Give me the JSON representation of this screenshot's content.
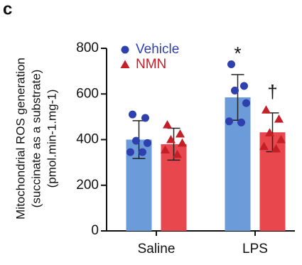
{
  "chart_data": {
    "type": "bar",
    "panel_label": "c",
    "ylabel": [
      "Mitochondrial ROS generation",
      "(succinate as a substrate)",
      "(pmol.min-1.mg-1)"
    ],
    "categories": [
      "Saline",
      "LPS"
    ],
    "series": [
      {
        "name": "Vehicle",
        "color": "#6b9bd9",
        "point_color": "#2e3fae",
        "marker": "circle",
        "values": [
          400,
          585
        ],
        "errors": [
          83,
          100
        ],
        "points": [
          [
            510,
            495,
            395,
            385,
            345,
            345
          ],
          [
            730,
            635,
            615,
            560,
            480,
            475
          ]
        ],
        "annotations": [
          null,
          "*"
        ]
      },
      {
        "name": "NMN",
        "color": "#e8474d",
        "point_color": "#c41e26",
        "marker": "triangle",
        "values": [
          380,
          432
        ],
        "errors": [
          70,
          85
        ],
        "points": [
          [
            465,
            425,
            400,
            385,
            355,
            335
          ],
          [
            530,
            490,
            430,
            400,
            370,
            360
          ]
        ],
        "annotations": [
          null,
          "†"
        ]
      }
    ],
    "ylim": [
      0,
      800
    ],
    "yticks": [
      0,
      200,
      400,
      600,
      800
    ],
    "legend": "top-left"
  }
}
